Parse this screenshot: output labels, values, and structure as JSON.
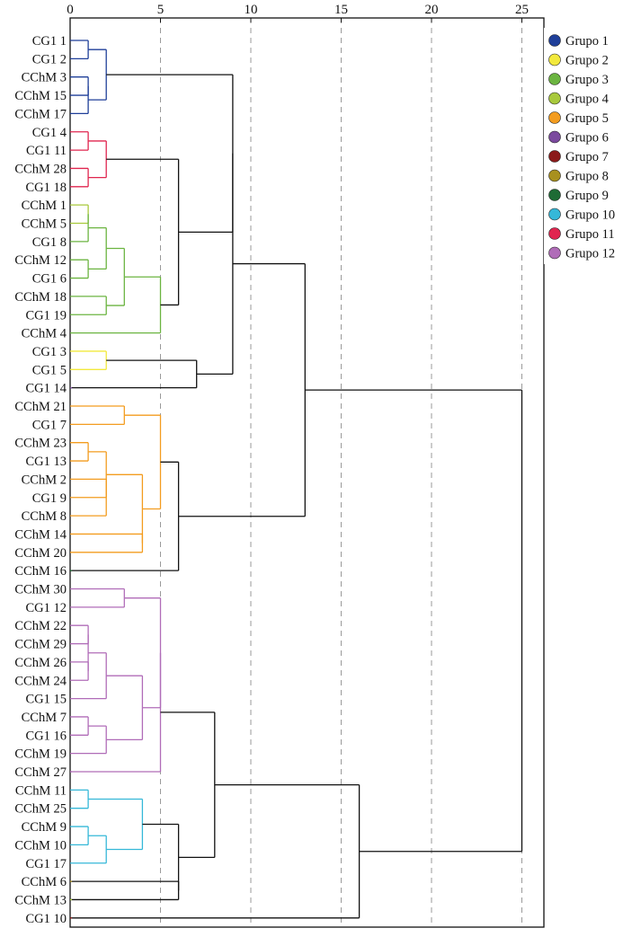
{
  "chart_data": {
    "type": "dendrogram",
    "title": "",
    "xlabel": "",
    "ylabel": "",
    "xlim": [
      0,
      26.3
    ],
    "x_ticks": [
      "0",
      "5",
      "10",
      "15",
      "20",
      "25"
    ],
    "grid": "vertical dashed at x ticks",
    "legend_position": "right",
    "leaves": [
      "CG1 1",
      "CG1 2",
      "CChM 3",
      "CChM 15",
      "CChM 17",
      "CG1 4",
      "CG1 11",
      "CChM 28",
      "CG1 18",
      "CChM 1",
      "CChM 5",
      "CG1 8",
      "CChM 12",
      "CG1 6",
      "CChM 18",
      "CG1 19",
      "CChM 4",
      "CG1 3",
      "CG1 5",
      "CG1 14",
      "CChM 21",
      "CG1 7",
      "CChM 23",
      "CG1 13",
      "CChM 2",
      "CG1 9",
      "CChM 8",
      "CChM 14",
      "CChM 20",
      "CChM 16",
      "CChM 30",
      "CG1 12",
      "CChM 22",
      "CChM 29",
      "CChM 26",
      "CChM 24",
      "CG1 15",
      "CChM 7",
      "CG1 16",
      "CChM 19",
      "CChM 27",
      "CChM 11",
      "CChM 25",
      "CChM 9",
      "CChM 10",
      "CG1 17",
      "CChM 6",
      "CChM 13",
      "CG1 10"
    ],
    "groups": [
      {
        "name": "Grupo 1",
        "color": "#1f3f99"
      },
      {
        "name": "Grupo 2",
        "color": "#f2e93d"
      },
      {
        "name": "Grupo 3",
        "color": "#6bb440"
      },
      {
        "name": "Grupo 4",
        "color": "#a8c93c"
      },
      {
        "name": "Grupo 5",
        "color": "#f39c1f"
      },
      {
        "name": "Grupo 6",
        "color": "#7b4a9e"
      },
      {
        "name": "Grupo 7",
        "color": "#8b1a1a"
      },
      {
        "name": "Grupo 8",
        "color": "#a8901e"
      },
      {
        "name": "Grupo 9",
        "color": "#1e6b35"
      },
      {
        "name": "Grupo 10",
        "color": "#35b8d8"
      },
      {
        "name": "Grupo 11",
        "color": "#e0254f"
      },
      {
        "name": "Grupo 12",
        "color": "#b06cb8"
      }
    ],
    "merges": [
      {
        "a": "CG1 1",
        "b": "CG1 2",
        "h": 1,
        "color": "#1f3f99"
      },
      {
        "a": "CChM 3",
        "b": "CChM 15",
        "h": 1,
        "color": "#1f3f99"
      },
      {
        "a": "CChM 3+CChM 15",
        "b": "CChM 17",
        "h": 1,
        "color": "#1f3f99"
      },
      {
        "a": "CG1 1+CG1 2",
        "b": "CChM 3+CChM 15+CChM 17",
        "h": 2,
        "color": "#1f3f99"
      },
      {
        "a": "CG1 4",
        "b": "CG1 11",
        "h": 1,
        "color": "#e0254f"
      },
      {
        "a": "CChM 28",
        "b": "CG1 18",
        "h": 1,
        "color": "#e0254f"
      },
      {
        "a": "CG1 4+CG1 11",
        "b": "CChM 28+CG1 18",
        "h": 2,
        "color": "#e0254f"
      },
      {
        "a": "CChM 1",
        "b": "CChM 5",
        "h": 1,
        "color": "#a8c93c"
      },
      {
        "a": "CChM 1+CChM 5",
        "b": "CG1 8",
        "h": 1,
        "color": "#6bb440"
      },
      {
        "a": "CChM 12",
        "b": "CG1 6",
        "h": 1,
        "color": "#6bb440"
      },
      {
        "a": "CChM 1+CChM 5+CG1 8",
        "b": "CChM 12+CG1 6",
        "h": 2,
        "color": "#6bb440"
      },
      {
        "a": "CChM 18",
        "b": "CG1 19",
        "h": 2,
        "color": "#6bb440"
      },
      {
        "a": "G3 left",
        "b": "CChM 18+CG1 19",
        "h": 3,
        "color": "#6bb440"
      },
      {
        "a": "G3 left+right",
        "b": "CChM 4",
        "h": 5,
        "color": "#6bb440"
      },
      {
        "a": "Grupo 11",
        "b": "Grupo 3",
        "h": 6,
        "color": "#111111"
      },
      {
        "a": "CG1 3",
        "b": "CG1 5",
        "h": 2,
        "color": "#f2e93d"
      },
      {
        "a": "Grupo 2",
        "b": "CG1 14",
        "h": 7,
        "color": "#111111"
      },
      {
        "a": "Grupo 1",
        "b": "Grupo 11+Grupo 3",
        "h": 9,
        "color": "#111111"
      },
      {
        "a": "CChM 21",
        "b": "CG1 7",
        "h": 3,
        "color": "#f39c1f"
      },
      {
        "a": "CChM 23",
        "b": "CG1 13",
        "h": 1,
        "color": "#f39c1f"
      },
      {
        "a": "CChM 2",
        "b": "CG1 9",
        "h": 2,
        "color": "#f39c1f"
      },
      {
        "a": "CChM 23+CG1 13",
        "b": "CChM 2+CG1 9+CChM 8",
        "h": 2,
        "color": "#f39c1f"
      },
      {
        "a": "CChM 14",
        "b": "CChM 20",
        "h": 4,
        "color": "#f39c1f"
      },
      {
        "a": "G5 mid",
        "b": "CChM 14+CChM 20",
        "h": 4,
        "color": "#f39c1f"
      },
      {
        "a": "CChM 21+CG1 7",
        "b": "G5 mid+bottom",
        "h": 5,
        "color": "#f39c1f"
      },
      {
        "a": "Grupo 5",
        "b": "CChM 16",
        "h": 6,
        "color": "#111111"
      },
      {
        "a": "Upper cluster",
        "b": "Grupo 5+CChM 16",
        "h": 13,
        "color": "#111111"
      },
      {
        "a": "CChM 30",
        "b": "CG1 12",
        "h": 3,
        "color": "#b06cb8"
      },
      {
        "a": "CChM 22",
        "b": "CChM 29",
        "h": 1,
        "color": "#b06cb8"
      },
      {
        "a": "CChM 26",
        "b": "CChM 24",
        "h": 1,
        "color": "#b06cb8"
      },
      {
        "a": "CChM 22+CChM 29",
        "b": "CChM 26+CChM 24",
        "h": 1,
        "color": "#b06cb8"
      },
      {
        "a": "CChM 22..24",
        "b": "CG1 15",
        "h": 2,
        "color": "#b06cb8"
      },
      {
        "a": "CChM 7",
        "b": "CG1 16",
        "h": 1,
        "color": "#b06cb8"
      },
      {
        "a": "CChM 7+CG1 16",
        "b": "CChM 19",
        "h": 2,
        "color": "#b06cb8"
      },
      {
        "a": "CChM 22..CG1 15",
        "b": "CChM 7..CChM 19",
        "h": 4,
        "color": "#b06cb8"
      },
      {
        "a": "CChM 30+CG1 12",
        "b": "CChM 22..CChM 19",
        "h": 5,
        "color": "#b06cb8"
      },
      {
        "a": "Grupo 12",
        "b": "CChM 27",
        "h": 5,
        "color": "#b06cb8"
      },
      {
        "a": "CChM 11",
        "b": "CChM 25",
        "h": 1,
        "color": "#35b8d8"
      },
      {
        "a": "CChM 9",
        "b": "CChM 10",
        "h": 1,
        "color": "#35b8d8"
      },
      {
        "a": "CChM 9+CChM 10",
        "b": "CG1 17",
        "h": 2,
        "color": "#35b8d8"
      },
      {
        "a": "CChM 11+CChM 25",
        "b": "CChM 9+CChM 10+CG1 17",
        "h": 4,
        "color": "#35b8d8"
      },
      {
        "a": "CChM 6",
        "b": "CChM 13",
        "h": 6,
        "color": "#111111"
      },
      {
        "a": "Grupo 10",
        "b": "CChM 6+CChM 13",
        "h": 6,
        "color": "#111111"
      },
      {
        "a": "Grupo 12",
        "b": "Grupo 10+CChM 6+CChM 13",
        "h": 8,
        "color": "#111111"
      },
      {
        "a": "Lower cluster",
        "b": "CG1 10",
        "h": 16,
        "color": "#111111"
      },
      {
        "a": "Upper cluster",
        "b": "Lower cluster",
        "h": 25,
        "color": "#111111"
      }
    ]
  }
}
